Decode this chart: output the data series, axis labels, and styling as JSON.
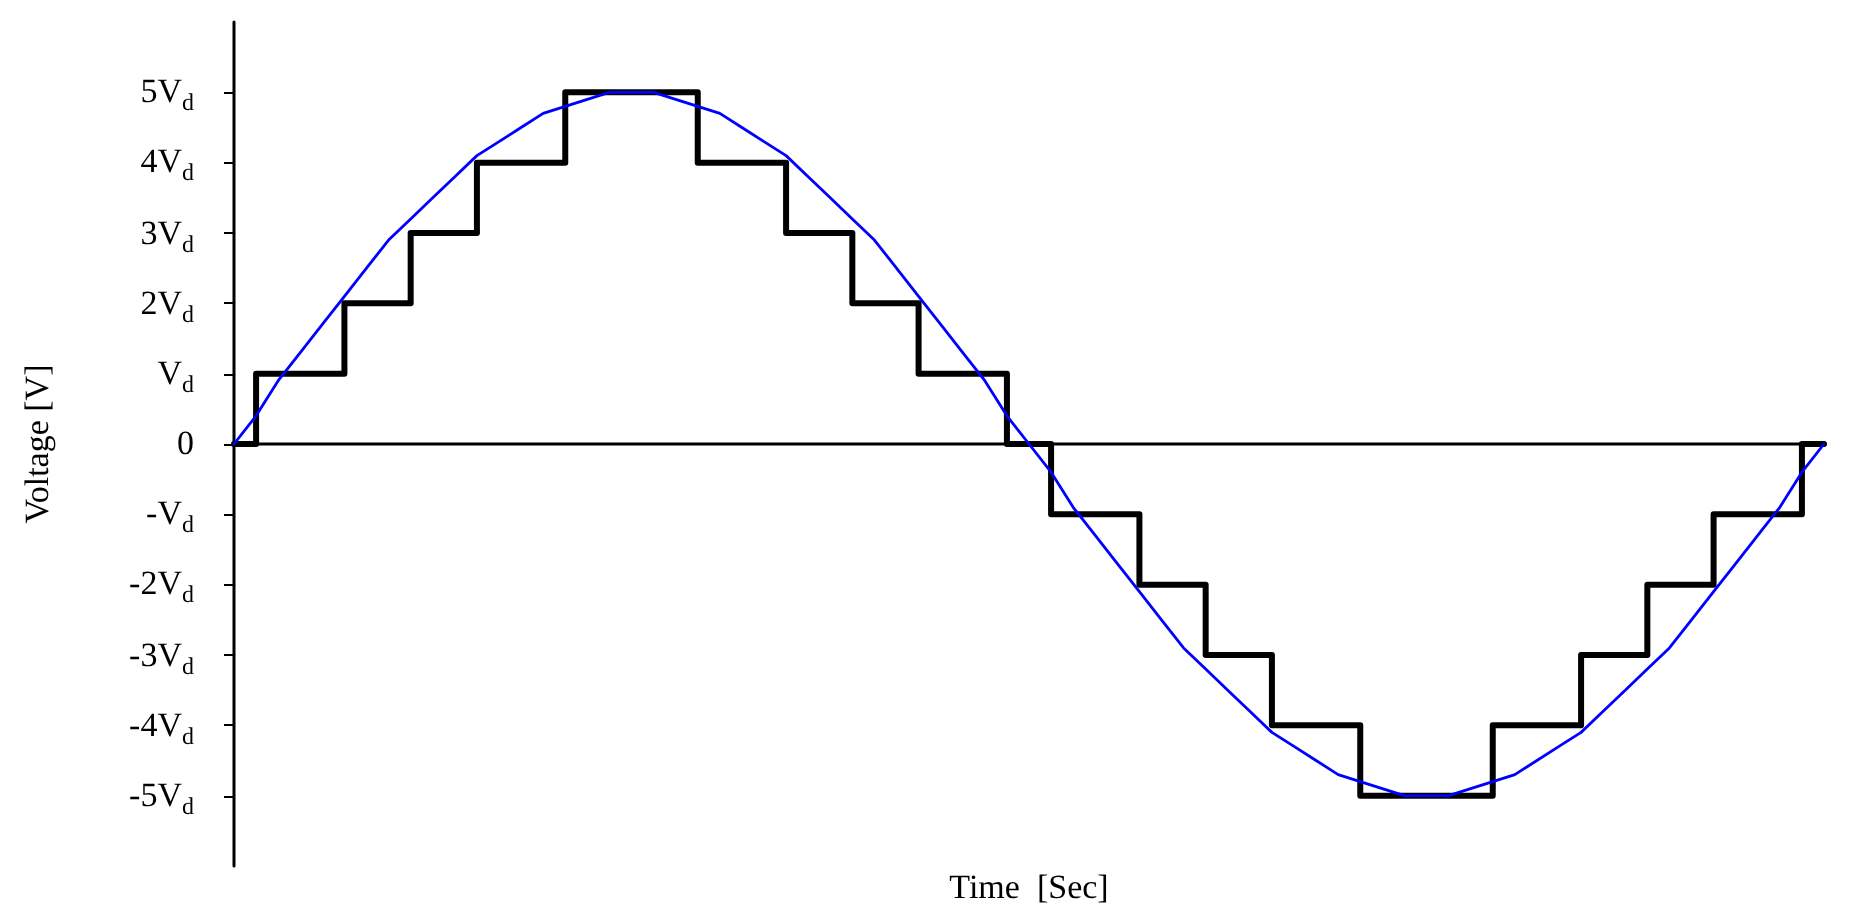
{
  "chart_data": {
    "type": "line",
    "xlabel": "Time  [Sec]",
    "ylabel": "Voltage [V]",
    "categories": [
      null,
      null,
      null,
      null,
      null,
      null,
      null,
      null,
      null,
      null,
      null,
      null,
      null,
      null,
      null,
      null,
      null,
      null,
      null,
      null,
      null,
      null,
      null,
      null,
      null,
      null,
      null,
      null,
      null,
      null,
      null,
      null,
      null,
      null,
      null,
      null,
      null,
      null,
      null,
      null,
      null,
      null,
      null,
      null,
      null,
      null,
      null,
      null,
      null,
      null,
      null,
      null,
      null,
      null,
      null,
      null,
      null,
      null,
      null,
      null,
      null,
      null,
      null,
      null,
      null,
      null,
      null,
      null,
      null,
      null,
      null,
      null,
      null
    ],
    "ylim": [
      -6,
      6
    ],
    "yticks": [
      {
        "value": -5,
        "label": "-5V$_{d}$"
      },
      {
        "value": -4,
        "label": "-4V$_{d}$"
      },
      {
        "value": -3,
        "label": "-3V$_{d}$"
      },
      {
        "value": -2,
        "label": "-2V$_{d}$"
      },
      {
        "value": -1,
        "label": "-V$_{d}$"
      },
      0,
      {
        "value": 1,
        "label": "V$_{d}$"
      },
      {
        "value": 2,
        "label": "2V$_{d}$"
      },
      {
        "value": 3,
        "label": "3V$_{d}$"
      },
      {
        "value": 4,
        "label": "4V$_{d}$"
      },
      {
        "value": 5,
        "label": "5V$_{d}$"
      }
    ],
    "tick_labels": "y",
    "marker": "none",
    "line_style": "solid",
    "series": [
      {
        "type": "step",
        "color": "#000000",
        "values": [
          0,
          1,
          1,
          1,
          1,
          2,
          2,
          2,
          3,
          3,
          3,
          4,
          4,
          4,
          4,
          5,
          5,
          5,
          5,
          5,
          5,
          4,
          4,
          4,
          4,
          3,
          3,
          3,
          2,
          2,
          2,
          1,
          1,
          1,
          1,
          0,
          0,
          -1,
          -1,
          -1,
          -1,
          -2,
          -2,
          -2,
          -3,
          -3,
          -3,
          -4,
          -4,
          -4,
          -4,
          -5,
          -5,
          -5,
          -5,
          -5,
          -5,
          -4,
          -4,
          -4,
          -4,
          -3,
          -3,
          -3,
          -2,
          -2,
          -2,
          -1,
          -1,
          -1,
          -1,
          0,
          0
        ]
      },
      {
        "type": "line",
        "color": "#0000ff",
        "values": [
          0,
          0.4,
          0.9,
          1.3,
          1.7,
          2.1,
          2.5,
          2.9,
          3.2,
          3.5,
          3.8,
          4.1,
          4.3,
          4.5,
          4.7,
          4.8,
          4.9,
          5.0,
          5,
          5.0,
          4.9,
          4.8,
          4.7,
          4.5,
          4.3,
          4.1,
          3.8,
          3.5,
          3.2,
          2.9,
          2.5,
          2.1,
          1.7,
          1.3,
          0.9,
          0.4,
          0,
          -0.4,
          -0.9,
          -1.3,
          -1.7,
          -2.1,
          -2.5,
          -2.9,
          -3.2,
          -3.5,
          -3.8,
          -4.1,
          -4.3,
          -4.5,
          -4.7,
          -4.8,
          -4.9,
          -5.0,
          -5,
          -5.0,
          -4.9,
          -4.8,
          -4.7,
          -4.5,
          -4.3,
          -4.1,
          -3.8,
          -3.5,
          -3.2,
          -2.9,
          -2.5,
          -2.1,
          -1.7,
          -1.3,
          -0.9,
          -0.4,
          0
        ]
      }
    ]
  }
}
